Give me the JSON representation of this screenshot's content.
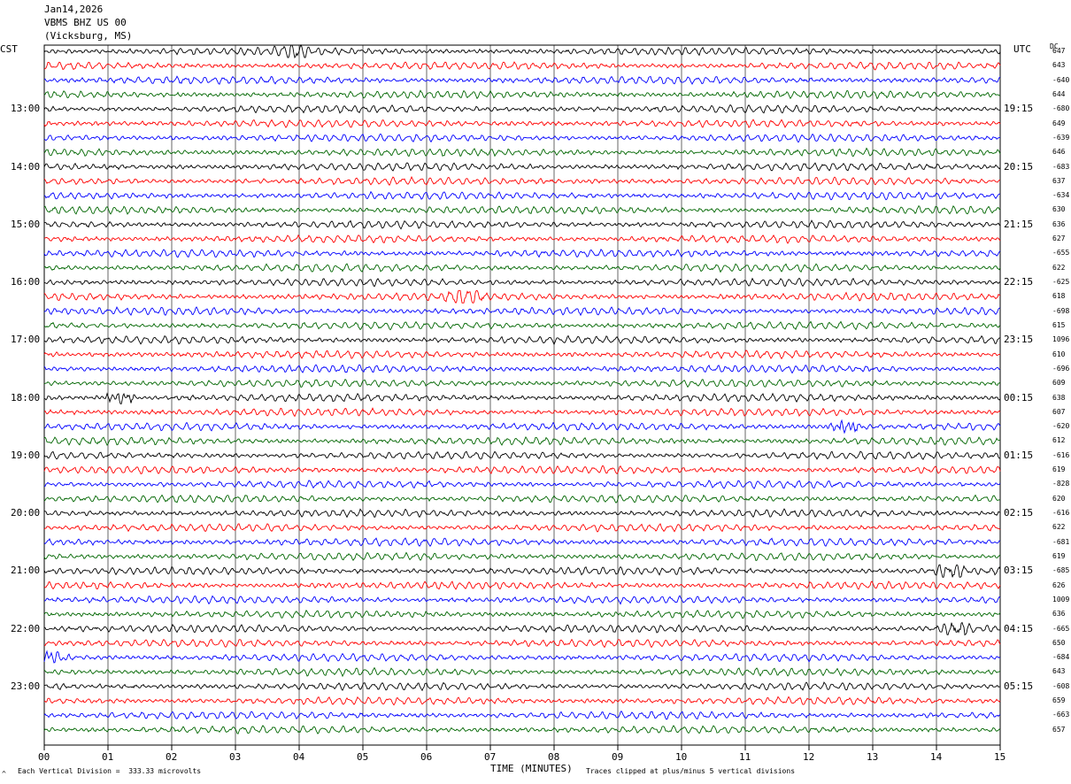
{
  "header": {
    "date": "Jan14,2026",
    "station": "VBMS BHZ US 00",
    "location": "(Vicksburg, MS)"
  },
  "left_zone": "CST",
  "right_zone": "UTC",
  "dc_label": "DC",
  "footer": {
    "scale_note": "Each Vertical Division =  333.33 microvolts",
    "clip_note": "Traces clipped at plus/minus 5 vertical divisions",
    "corner_mark": "^"
  },
  "colors": {
    "traces": [
      "#000000",
      "#ff0000",
      "#0000ff",
      "#006600"
    ],
    "grid": "#000000"
  },
  "chart_data": {
    "type": "line",
    "title": "",
    "xlabel": "TIME (MINUTES)",
    "xlim": [
      0,
      15
    ],
    "x_ticks": [
      "00",
      "01",
      "02",
      "03",
      "04",
      "05",
      "06",
      "07",
      "08",
      "09",
      "10",
      "11",
      "12",
      "13",
      "14",
      "15"
    ],
    "left_hour_labels": [
      "13:00",
      "14:00",
      "15:00",
      "16:00",
      "17:00",
      "18:00",
      "19:00",
      "20:00",
      "21:00",
      "22:00",
      "23:00"
    ],
    "right_hour_labels": [
      "19:15",
      "20:15",
      "21:15",
      "22:15",
      "23:15",
      "00:15",
      "01:15",
      "02:15",
      "03:15",
      "04:15",
      "05:15"
    ],
    "rows": [
      {
        "dc": "647"
      },
      {
        "dc": "643"
      },
      {
        "dc": "-640"
      },
      {
        "dc": "644"
      },
      {
        "dc": "-680"
      },
      {
        "dc": "649"
      },
      {
        "dc": "-639"
      },
      {
        "dc": "646"
      },
      {
        "dc": "-683"
      },
      {
        "dc": "637"
      },
      {
        "dc": "-634"
      },
      {
        "dc": "630"
      },
      {
        "dc": "636"
      },
      {
        "dc": "627"
      },
      {
        "dc": "-655"
      },
      {
        "dc": "622"
      },
      {
        "dc": "-625"
      },
      {
        "dc": "618"
      },
      {
        "dc": "-698"
      },
      {
        "dc": "615"
      },
      {
        "dc": "1096"
      },
      {
        "dc": "610"
      },
      {
        "dc": "-696"
      },
      {
        "dc": "609"
      },
      {
        "dc": "638"
      },
      {
        "dc": "607"
      },
      {
        "dc": "-620"
      },
      {
        "dc": "612"
      },
      {
        "dc": "-616"
      },
      {
        "dc": "619"
      },
      {
        "dc": "-828"
      },
      {
        "dc": "620"
      },
      {
        "dc": "-616"
      },
      {
        "dc": "622"
      },
      {
        "dc": "-681"
      },
      {
        "dc": "619"
      },
      {
        "dc": "-685"
      },
      {
        "dc": "626"
      },
      {
        "dc": "1009"
      },
      {
        "dc": "636"
      },
      {
        "dc": "-665"
      },
      {
        "dc": "650"
      },
      {
        "dc": "-684"
      },
      {
        "dc": "643"
      },
      {
        "dc": "-608"
      },
      {
        "dc": "659"
      },
      {
        "dc": "-663"
      },
      {
        "dc": "657"
      }
    ],
    "bursts": [
      {
        "row": 0,
        "t": 3.9,
        "amp": 2.0
      },
      {
        "row": 17,
        "t": 6.6,
        "amp": 2.6
      },
      {
        "row": 24,
        "t": 1.2,
        "amp": 2.6
      },
      {
        "row": 26,
        "t": 12.6,
        "amp": 3.0
      },
      {
        "row": 36,
        "t": 14.2,
        "amp": 2.4
      },
      {
        "row": 40,
        "t": 14.3,
        "amp": 2.8
      },
      {
        "row": 42,
        "t": 0.1,
        "amp": 3.0
      }
    ]
  }
}
